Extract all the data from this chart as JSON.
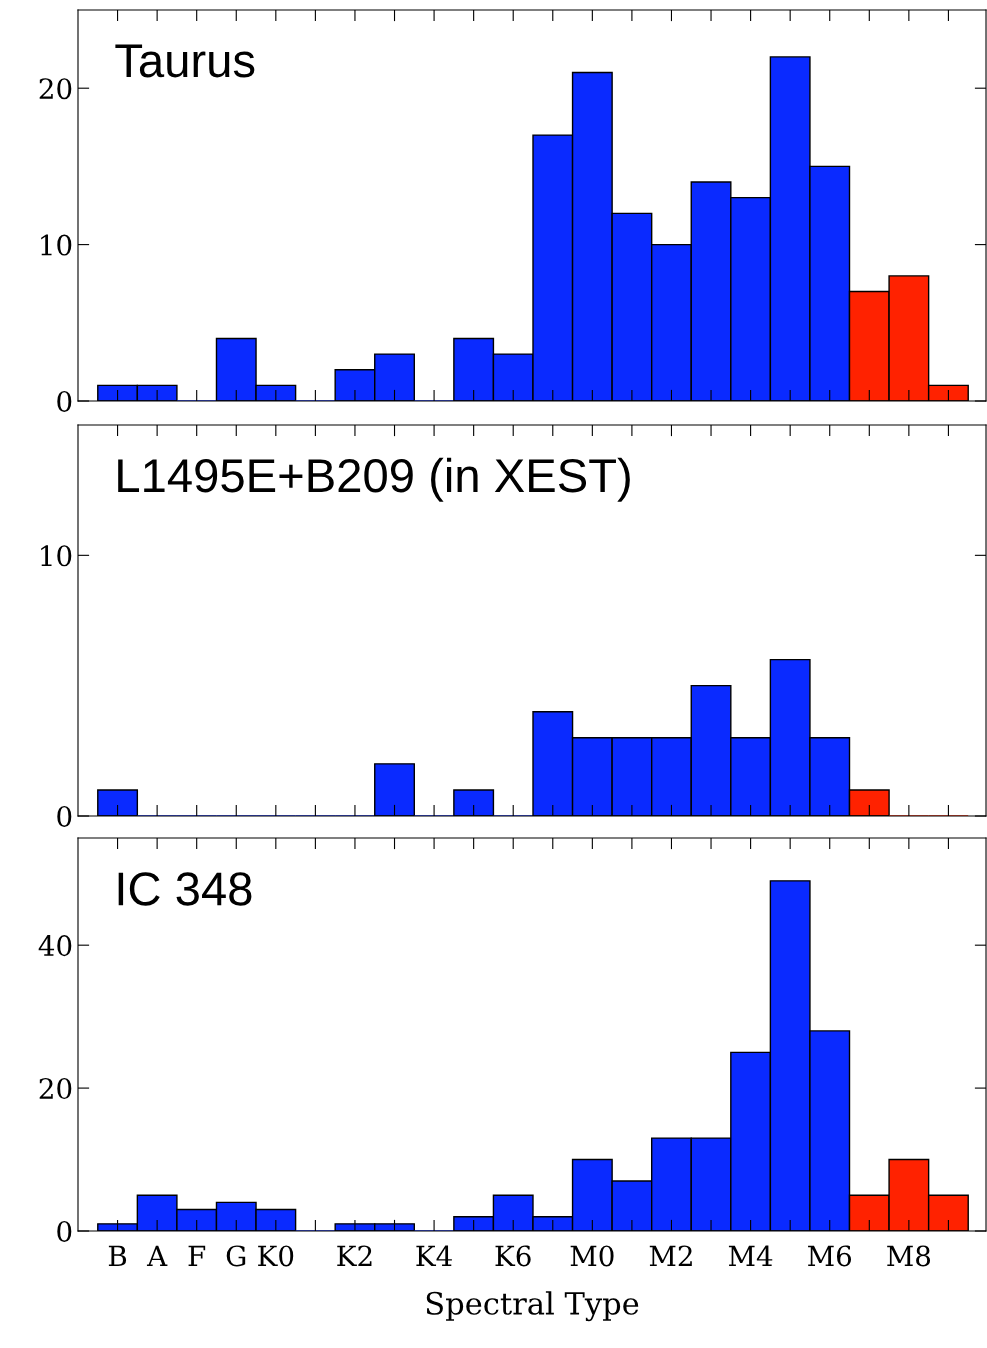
{
  "chart_data": [
    {
      "type": "bar",
      "title": "Taurus",
      "categories": [
        null,
        null,
        null,
        null,
        null,
        null,
        null,
        null,
        null,
        null,
        null,
        null,
        null,
        null,
        null,
        null,
        null,
        null,
        null,
        null,
        null,
        null
      ],
      "values": [
        1,
        1,
        0,
        4,
        1,
        0,
        2,
        3,
        0,
        4,
        3,
        17,
        21,
        12,
        10,
        14,
        13,
        22,
        15,
        7,
        8,
        1
      ],
      "colors": [
        "#0a2aff",
        "#0a2aff",
        "#0a2aff",
        "#0a2aff",
        "#0a2aff",
        "#0a2aff",
        "#0a2aff",
        "#0a2aff",
        "#0a2aff",
        "#0a2aff",
        "#0a2aff",
        "#0a2aff",
        "#0a2aff",
        "#0a2aff",
        "#0a2aff",
        "#0a2aff",
        "#0a2aff",
        "#0a2aff",
        "#0a2aff",
        "#ff2200",
        "#ff2200",
        "#ff2200"
      ],
      "ylim": [
        0,
        25
      ],
      "yticks": [
        0,
        10,
        20
      ],
      "tick_labels": "y",
      "grid": false,
      "legend": false
    },
    {
      "type": "bar",
      "title": "L1495E+B209 (in XEST)",
      "categories": [
        null,
        null,
        null,
        null,
        null,
        null,
        null,
        null,
        null,
        null,
        null,
        null,
        null,
        null,
        null,
        null,
        null,
        null,
        null,
        null,
        null,
        null
      ],
      "values": [
        1,
        0,
        0,
        0,
        0,
        0,
        0,
        2,
        0,
        1,
        0,
        4,
        3,
        3,
        3,
        5,
        3,
        6,
        3,
        1,
        0,
        0
      ],
      "colors": [
        "#0a2aff",
        "#0a2aff",
        "#0a2aff",
        "#0a2aff",
        "#0a2aff",
        "#0a2aff",
        "#0a2aff",
        "#0a2aff",
        "#0a2aff",
        "#0a2aff",
        "#0a2aff",
        "#0a2aff",
        "#0a2aff",
        "#0a2aff",
        "#0a2aff",
        "#0a2aff",
        "#0a2aff",
        "#0a2aff",
        "#0a2aff",
        "#ff2200",
        "#ff2200",
        "#ff2200"
      ],
      "ylim": [
        0,
        15
      ],
      "yticks": [
        0,
        10
      ],
      "tick_labels": "y",
      "grid": false,
      "legend": false
    },
    {
      "type": "bar",
      "title": "IC 348",
      "xlabel": "Spectral Type",
      "categories": [
        "B",
        "A",
        "F",
        "G",
        "K0",
        null,
        "K2",
        null,
        "K4",
        null,
        "K6",
        null,
        "M0",
        null,
        "M2",
        null,
        "M4",
        null,
        "M6",
        null,
        "M8",
        null
      ],
      "values": [
        1,
        5,
        3,
        4,
        3,
        0,
        1,
        1,
        0,
        2,
        5,
        2,
        10,
        7,
        13,
        13,
        25,
        49,
        28,
        5,
        10,
        5
      ],
      "colors": [
        "#0a2aff",
        "#0a2aff",
        "#0a2aff",
        "#0a2aff",
        "#0a2aff",
        "#0a2aff",
        "#0a2aff",
        "#0a2aff",
        "#0a2aff",
        "#0a2aff",
        "#0a2aff",
        "#0a2aff",
        "#0a2aff",
        "#0a2aff",
        "#0a2aff",
        "#0a2aff",
        "#0a2aff",
        "#0a2aff",
        "#0a2aff",
        "#ff2200",
        "#ff2200",
        "#ff2200"
      ],
      "ylim": [
        0,
        55
      ],
      "yticks": [
        0,
        20,
        40
      ],
      "grid": false,
      "legend": false
    }
  ]
}
